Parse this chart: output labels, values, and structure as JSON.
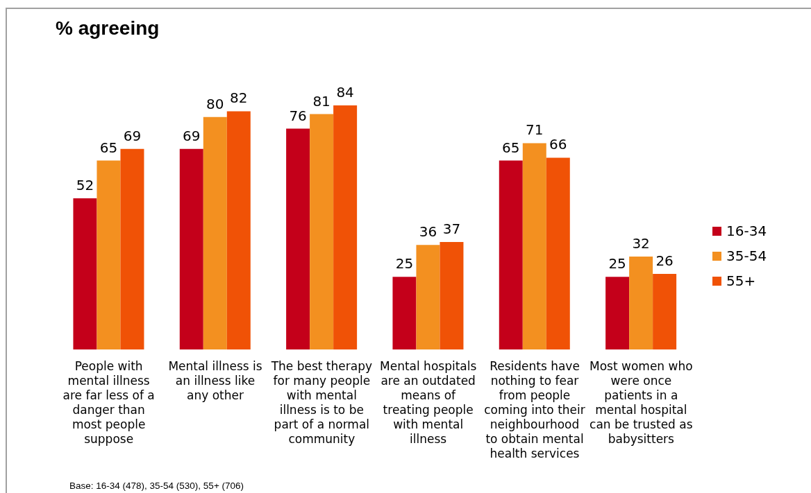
{
  "chart_data": {
    "type": "bar",
    "title": "% agreeing",
    "categories": [
      "People with mental illness are far less of a danger than most people suppose",
      "Mental illness is an illness like any other",
      "The best therapy for many people with mental illness is to be part of a normal community",
      "Mental hospitals are an outdated means of treating people with mental illness",
      "Residents have nothing to fear from people coming into their neighbourhood to obtain mental health services",
      "Most women who were once patients in a mental hospital can be trusted as babysitters"
    ],
    "series": [
      {
        "name": "16-34",
        "color": "#c4001a",
        "values": [
          52,
          69,
          76,
          25,
          65,
          25
        ]
      },
      {
        "name": "35-54",
        "color": "#f39020",
        "values": [
          65,
          80,
          81,
          36,
          71,
          32
        ]
      },
      {
        "name": "55+",
        "color": "#f05206",
        "values": [
          69,
          82,
          84,
          37,
          66,
          26
        ]
      }
    ],
    "data_labels": true,
    "legend": "right",
    "annotations": [
      "Base: 16-34 (478), 35-54 (530), 55+ (706)"
    ]
  }
}
